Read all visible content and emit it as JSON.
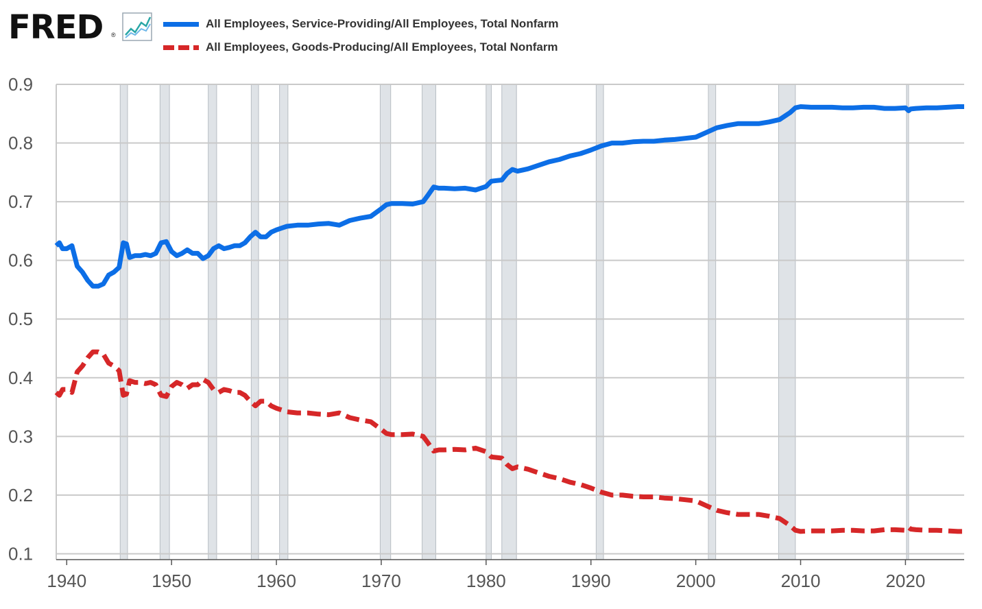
{
  "header": {
    "logo_text": "FRED",
    "logo_mark": "®",
    "logo_icon": "line-chart-icon"
  },
  "legend": [
    {
      "label": "All Employees, Service-Providing/All Employees, Total Nonfarm",
      "color": "#0c6ee6",
      "style": "solid"
    },
    {
      "label": "All Employees, Goods-Producing/All Employees, Total Nonfarm",
      "color": "#d62728",
      "style": "dashed"
    }
  ],
  "chart_data": {
    "type": "line",
    "title": "",
    "xlabel": "",
    "ylabel": "",
    "xlim": [
      1939.0,
      2025.6
    ],
    "ylim": [
      0.09,
      0.9
    ],
    "x_ticks": [
      "1940",
      "1950",
      "1960",
      "1970",
      "1980",
      "1990",
      "2000",
      "2010",
      "2020"
    ],
    "y_ticks": [
      "0.1",
      "0.2",
      "0.3",
      "0.4",
      "0.5",
      "0.6",
      "0.7",
      "0.8",
      "0.9"
    ],
    "recessions": [
      [
        1945.1,
        1945.8
      ],
      [
        1948.9,
        1949.8
      ],
      [
        1953.5,
        1954.3
      ],
      [
        1957.6,
        1958.3
      ],
      [
        1960.3,
        1961.1
      ],
      [
        1969.9,
        1970.9
      ],
      [
        1973.9,
        1975.2
      ],
      [
        1980.0,
        1980.5
      ],
      [
        1981.5,
        1982.9
      ],
      [
        1990.5,
        1991.2
      ],
      [
        2001.2,
        2001.9
      ],
      [
        2007.9,
        2009.5
      ],
      [
        2020.1,
        2020.3
      ]
    ],
    "series": [
      {
        "name": "All Employees, Service-Providing/All Employees, Total Nonfarm",
        "x": [
          1939.0,
          1939.3,
          1939.6,
          1940.0,
          1940.5,
          1941.0,
          1941.5,
          1942.0,
          1942.5,
          1943.0,
          1943.5,
          1944.0,
          1944.5,
          1945.0,
          1945.4,
          1945.7,
          1946.0,
          1946.5,
          1947.0,
          1947.5,
          1948.0,
          1948.5,
          1949.0,
          1949.5,
          1950.0,
          1950.5,
          1951.0,
          1951.5,
          1952.0,
          1952.5,
          1953.0,
          1953.5,
          1954.0,
          1954.5,
          1955.0,
          1955.5,
          1956.0,
          1956.5,
          1957.0,
          1957.5,
          1958.0,
          1958.5,
          1959.0,
          1959.5,
          1960.0,
          1960.5,
          1961.0,
          1962.0,
          1963.0,
          1964.0,
          1965.0,
          1966.0,
          1967.0,
          1968.0,
          1969.0,
          1970.0,
          1970.5,
          1971.0,
          1972.0,
          1973.0,
          1974.0,
          1974.5,
          1975.0,
          1975.5,
          1976.0,
          1977.0,
          1978.0,
          1979.0,
          1980.0,
          1980.5,
          1981.0,
          1981.5,
          1982.0,
          1982.5,
          1983.0,
          1984.0,
          1985.0,
          1986.0,
          1987.0,
          1988.0,
          1989.0,
          1990.0,
          1991.0,
          1992.0,
          1993.0,
          1994.0,
          1995.0,
          1996.0,
          1997.0,
          1998.0,
          1999.0,
          2000.0,
          2001.0,
          2002.0,
          2003.0,
          2004.0,
          2005.0,
          2006.0,
          2007.0,
          2008.0,
          2009.0,
          2009.5,
          2010.0,
          2011.0,
          2012.0,
          2013.0,
          2014.0,
          2015.0,
          2016.0,
          2017.0,
          2018.0,
          2019.0,
          2020.0,
          2020.3,
          2020.5,
          2021.0,
          2022.0,
          2023.0,
          2024.0,
          2025.0,
          2025.6
        ],
        "values": [
          0.625,
          0.63,
          0.62,
          0.62,
          0.625,
          0.59,
          0.58,
          0.566,
          0.556,
          0.556,
          0.56,
          0.575,
          0.58,
          0.588,
          0.63,
          0.628,
          0.605,
          0.608,
          0.608,
          0.61,
          0.608,
          0.612,
          0.63,
          0.632,
          0.615,
          0.608,
          0.612,
          0.618,
          0.612,
          0.612,
          0.603,
          0.608,
          0.62,
          0.625,
          0.62,
          0.622,
          0.625,
          0.625,
          0.63,
          0.64,
          0.648,
          0.64,
          0.64,
          0.648,
          0.652,
          0.655,
          0.658,
          0.66,
          0.66,
          0.662,
          0.663,
          0.66,
          0.668,
          0.672,
          0.675,
          0.688,
          0.695,
          0.697,
          0.697,
          0.696,
          0.7,
          0.712,
          0.725,
          0.723,
          0.723,
          0.722,
          0.723,
          0.72,
          0.726,
          0.735,
          0.736,
          0.737,
          0.748,
          0.755,
          0.752,
          0.756,
          0.762,
          0.768,
          0.772,
          0.778,
          0.782,
          0.788,
          0.795,
          0.8,
          0.8,
          0.802,
          0.803,
          0.803,
          0.805,
          0.806,
          0.808,
          0.81,
          0.818,
          0.826,
          0.83,
          0.833,
          0.833,
          0.833,
          0.836,
          0.84,
          0.852,
          0.86,
          0.862,
          0.861,
          0.861,
          0.861,
          0.86,
          0.86,
          0.861,
          0.861,
          0.859,
          0.859,
          0.86,
          0.855,
          0.858,
          0.859,
          0.86,
          0.86,
          0.861,
          0.862,
          0.862
        ]
      },
      {
        "name": "All Employees, Goods-Producing/All Employees, Total Nonfarm",
        "x": [
          1939.0,
          1939.3,
          1939.6,
          1940.0,
          1940.5,
          1941.0,
          1941.5,
          1942.0,
          1942.5,
          1943.0,
          1943.5,
          1944.0,
          1944.5,
          1945.0,
          1945.4,
          1945.7,
          1946.0,
          1946.5,
          1947.0,
          1947.5,
          1948.0,
          1948.5,
          1949.0,
          1949.5,
          1950.0,
          1950.5,
          1951.0,
          1951.5,
          1952.0,
          1952.5,
          1953.0,
          1953.5,
          1954.0,
          1954.5,
          1955.0,
          1955.5,
          1956.0,
          1956.5,
          1957.0,
          1957.5,
          1958.0,
          1958.5,
          1959.0,
          1959.5,
          1960.0,
          1960.5,
          1961.0,
          1962.0,
          1963.0,
          1964.0,
          1965.0,
          1966.0,
          1967.0,
          1968.0,
          1969.0,
          1970.0,
          1970.5,
          1971.0,
          1972.0,
          1973.0,
          1974.0,
          1974.5,
          1975.0,
          1975.5,
          1976.0,
          1977.0,
          1978.0,
          1979.0,
          1980.0,
          1980.5,
          1981.0,
          1981.5,
          1982.0,
          1982.5,
          1983.0,
          1984.0,
          1985.0,
          1986.0,
          1987.0,
          1988.0,
          1989.0,
          1990.0,
          1991.0,
          1992.0,
          1993.0,
          1994.0,
          1995.0,
          1996.0,
          1997.0,
          1998.0,
          1999.0,
          2000.0,
          2001.0,
          2002.0,
          2003.0,
          2004.0,
          2005.0,
          2006.0,
          2007.0,
          2008.0,
          2009.0,
          2009.5,
          2010.0,
          2011.0,
          2012.0,
          2013.0,
          2014.0,
          2015.0,
          2016.0,
          2017.0,
          2018.0,
          2019.0,
          2020.0,
          2020.3,
          2020.5,
          2021.0,
          2022.0,
          2023.0,
          2024.0,
          2025.0,
          2025.6
        ],
        "values": [
          0.375,
          0.37,
          0.38,
          0.38,
          0.375,
          0.41,
          0.42,
          0.434,
          0.444,
          0.444,
          0.44,
          0.425,
          0.42,
          0.412,
          0.37,
          0.372,
          0.395,
          0.392,
          0.392,
          0.39,
          0.392,
          0.388,
          0.37,
          0.368,
          0.385,
          0.392,
          0.388,
          0.382,
          0.388,
          0.388,
          0.397,
          0.392,
          0.38,
          0.375,
          0.38,
          0.378,
          0.375,
          0.375,
          0.37,
          0.36,
          0.352,
          0.36,
          0.36,
          0.352,
          0.348,
          0.345,
          0.342,
          0.34,
          0.34,
          0.338,
          0.337,
          0.34,
          0.332,
          0.328,
          0.325,
          0.312,
          0.305,
          0.303,
          0.303,
          0.304,
          0.3,
          0.288,
          0.275,
          0.277,
          0.277,
          0.278,
          0.277,
          0.28,
          0.274,
          0.265,
          0.264,
          0.263,
          0.252,
          0.245,
          0.248,
          0.244,
          0.238,
          0.232,
          0.228,
          0.222,
          0.218,
          0.212,
          0.205,
          0.2,
          0.2,
          0.198,
          0.197,
          0.197,
          0.195,
          0.194,
          0.192,
          0.19,
          0.182,
          0.174,
          0.17,
          0.167,
          0.167,
          0.167,
          0.164,
          0.16,
          0.148,
          0.14,
          0.138,
          0.139,
          0.139,
          0.139,
          0.14,
          0.14,
          0.139,
          0.139,
          0.141,
          0.141,
          0.14,
          0.145,
          0.142,
          0.141,
          0.14,
          0.14,
          0.139,
          0.138,
          0.138
        ]
      }
    ]
  }
}
